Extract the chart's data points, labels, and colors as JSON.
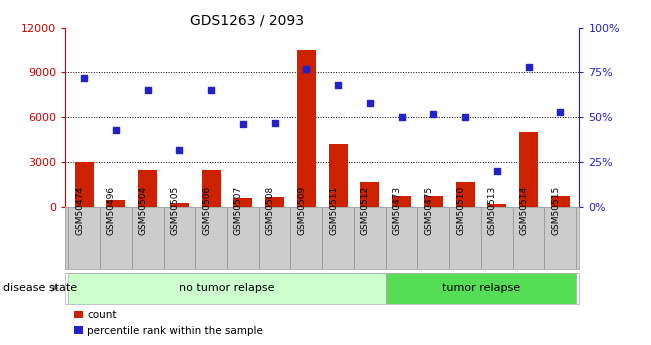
{
  "title": "GDS1263 / 2093",
  "samples": [
    "GSM50474",
    "GSM50496",
    "GSM50504",
    "GSM50505",
    "GSM50506",
    "GSM50507",
    "GSM50508",
    "GSM50509",
    "GSM50511",
    "GSM50512",
    "GSM50473",
    "GSM50475",
    "GSM50510",
    "GSM50513",
    "GSM50514",
    "GSM50515"
  ],
  "counts": [
    3000,
    500,
    2500,
    300,
    2500,
    600,
    700,
    10500,
    4200,
    1700,
    750,
    750,
    1700,
    200,
    5000,
    750
  ],
  "percentiles": [
    72,
    43,
    65,
    32,
    65,
    46,
    47,
    77,
    68,
    58,
    50,
    52,
    50,
    20,
    78,
    53
  ],
  "no_tumor_count": 10,
  "tumor_count": 6,
  "left_axis_color": "#cc0000",
  "right_axis_color": "#2222cc",
  "bar_color": "#cc2200",
  "dot_color": "#2222cc",
  "left_ylim": [
    0,
    12000
  ],
  "right_ylim": [
    0,
    100
  ],
  "left_yticks": [
    0,
    3000,
    6000,
    9000,
    12000
  ],
  "right_yticks": [
    0,
    25,
    50,
    75,
    100
  ],
  "right_yticklabels": [
    "0%",
    "25%",
    "50%",
    "75%",
    "100%"
  ],
  "grid_color": "#000000",
  "bg_color": "#ffffff",
  "tick_area_color": "#cccccc",
  "no_tumor_color": "#ccffcc",
  "tumor_color": "#55dd55",
  "disease_label": "disease state",
  "no_tumor_label": "no tumor relapse",
  "tumor_label": "tumor relapse",
  "legend_count": "count",
  "legend_percentile": "percentile rank within the sample"
}
